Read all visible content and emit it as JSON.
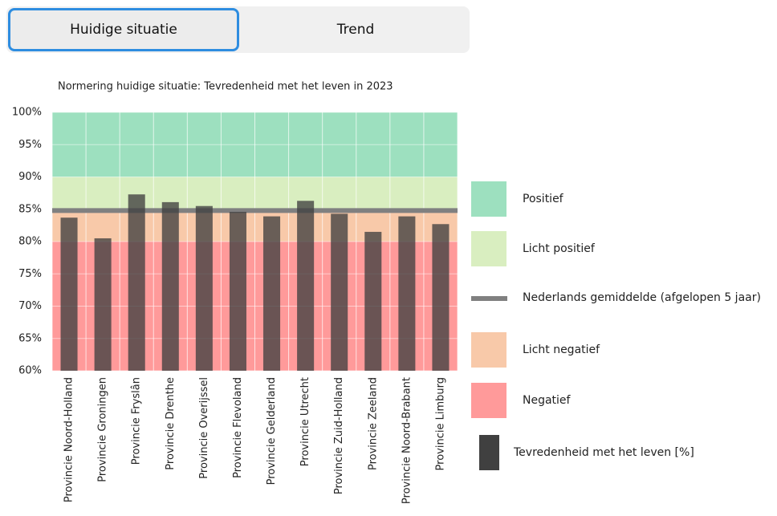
{
  "tabs": [
    "Huidige situatie",
    "Trend"
  ],
  "chart_data": {
    "type": "bar",
    "title": "Normering huidige situatie: Tevredenheid met het leven in 2023",
    "categories": [
      "Provincie Noord-Holland",
      "Provincie Groningen",
      "Provincie Fryslân",
      "Provincie Drenthe",
      "Provincie Overijssel",
      "Provincie Flevoland",
      "Provincie Gelderland",
      "Provincie Utrecht",
      "Provincie Zuid-Holland",
      "Provincie Zeeland",
      "Provincie Noord-Brabant",
      "Provincie Limburg"
    ],
    "series": [
      {
        "name": "Tevredenheid met het leven [%]",
        "color": "#404040",
        "values": [
          83.7,
          80.5,
          87.3,
          86.1,
          85.5,
          84.6,
          83.9,
          86.3,
          84.3,
          81.5,
          83.9,
          82.7
        ]
      }
    ],
    "bands": [
      {
        "name": "Positief",
        "from": 90,
        "to": 100,
        "color": "#9de0bf"
      },
      {
        "name": "Licht positief",
        "from": 85,
        "to": 90,
        "color": "#d9eec0"
      },
      {
        "name": "Licht negatief",
        "from": 80,
        "to": 85,
        "color": "#f8c9a9"
      },
      {
        "name": "Negatief",
        "from": 60,
        "to": 80,
        "color": "#ff9a9a"
      }
    ],
    "average": {
      "name": "Nederlands gemiddelde (afgelopen 5 jaar)",
      "value": 84.8,
      "color": "#808080"
    },
    "ylim": [
      60,
      100
    ],
    "yticks": [
      {
        "value": 60,
        "label": "60%"
      },
      {
        "value": 65,
        "label": "65%"
      },
      {
        "value": 70,
        "label": "70%"
      },
      {
        "value": 75,
        "label": "75%"
      },
      {
        "value": 80,
        "label": "80%"
      },
      {
        "value": 85,
        "label": "85%"
      },
      {
        "value": 90,
        "label": "90%"
      },
      {
        "value": 95,
        "label": "95%"
      },
      {
        "value": 100,
        "label": "100%"
      }
    ],
    "grid": true
  }
}
